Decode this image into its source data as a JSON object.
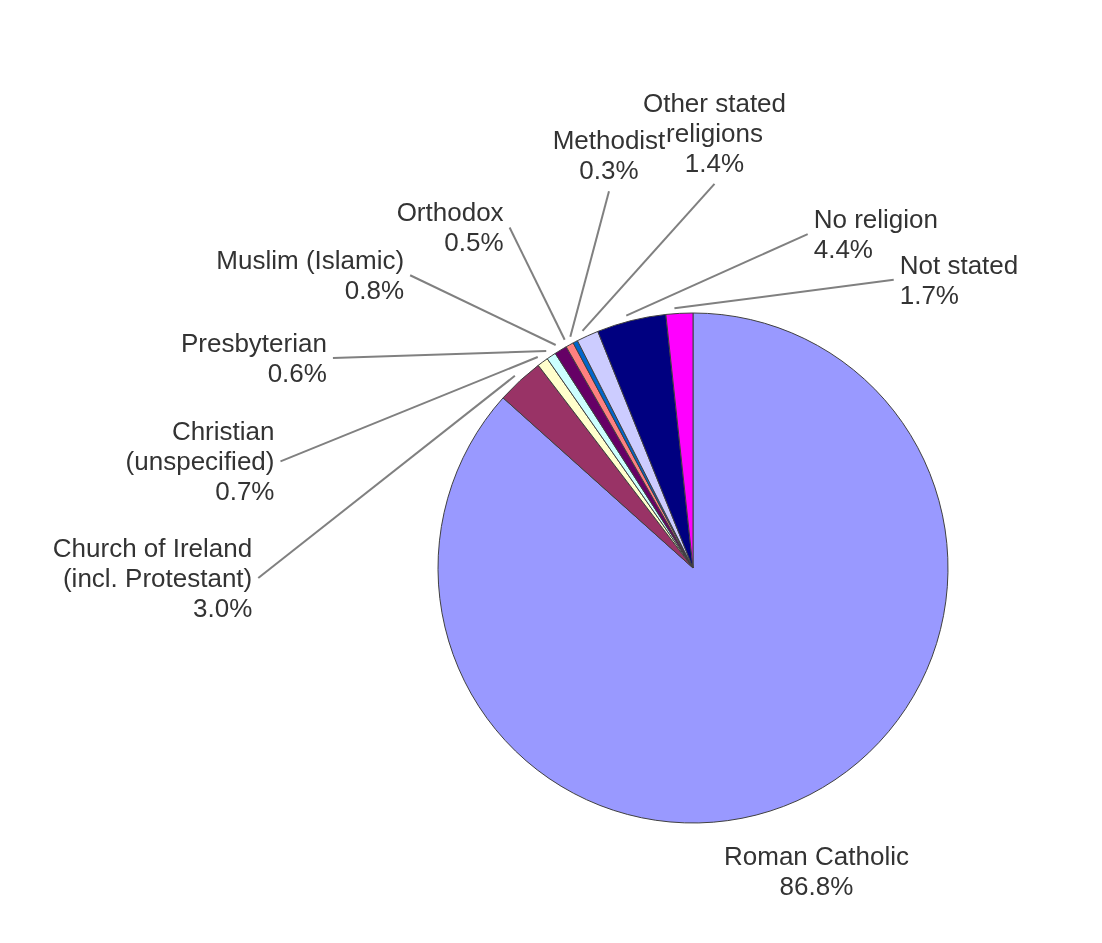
{
  "chart_data": {
    "type": "pie",
    "categories": [
      "Roman Catholic",
      "Church of Ireland (incl. Protestant)",
      "Christian (unspecified)",
      "Presbyterian",
      "Muslim (Islamic)",
      "Orthodox",
      "Methodist",
      "Other stated religions",
      "No religion",
      "Not stated"
    ],
    "values": [
      86.8,
      3.0,
      0.7,
      0.6,
      0.8,
      0.5,
      0.3,
      1.4,
      4.4,
      1.7
    ],
    "value_labels": [
      "86.8%",
      "3.0%",
      "0.7%",
      "0.6%",
      "0.8%",
      "0.5%",
      "0.3%",
      "1.4%",
      "4.4%",
      "1.7%"
    ],
    "colors": [
      "#9999ff",
      "#993366",
      "#ffffcc",
      "#ccffff",
      "#660066",
      "#ff8080",
      "#0066cc",
      "#ccccff",
      "#000080",
      "#ff00ff"
    ],
    "legend": false
  }
}
